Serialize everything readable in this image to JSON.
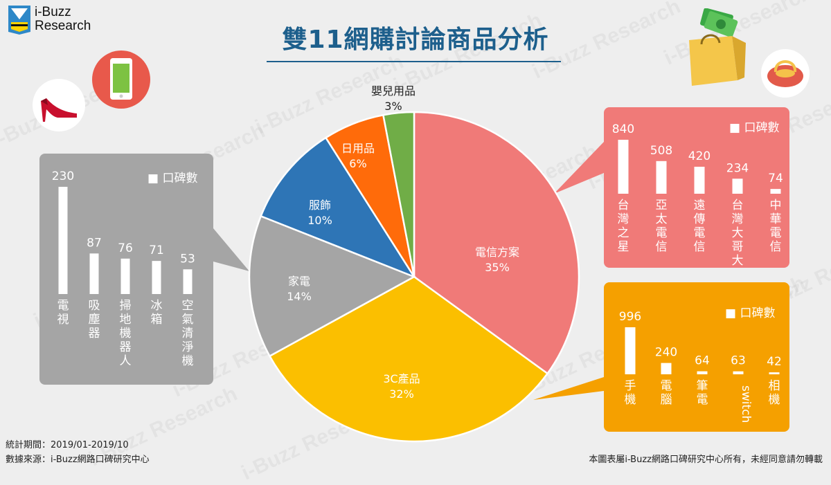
{
  "brand": {
    "line1": "i-Buzz",
    "line2": "Research"
  },
  "title": "雙11網購討論商品分析",
  "watermark_text": "i-Buzz Research",
  "footer": {
    "period": "統計期間：2019/01-2019/10",
    "source": "數據來源：i-Buzz網路口碑研究中心",
    "copyright": "本圖表屬i-Buzz網路口碑研究中心所有，未經同意請勿轉載"
  },
  "chart_data": [
    {
      "type": "pie",
      "slices": [
        {
          "label": "電信方案",
          "value": 35,
          "pct_label": "35%",
          "color": "#f07a78"
        },
        {
          "label": "3C產品",
          "value": 32,
          "pct_label": "32%",
          "color": "#fbbf00"
        },
        {
          "label": "家電",
          "value": 14,
          "pct_label": "14%",
          "color": "#a5a5a5"
        },
        {
          "label": "服飾",
          "value": 10,
          "pct_label": "10%",
          "color": "#2e75b6"
        },
        {
          "label": "日用品",
          "value": 6,
          "pct_label": "6%",
          "color": "#ff6b0a"
        },
        {
          "label": "嬰兒用品",
          "value": 3,
          "pct_label": "3%",
          "color": "#70ad47"
        }
      ]
    },
    {
      "type": "bar",
      "panel_color": "#a5a5a5",
      "legend": "口碑數",
      "categories": [
        "電視",
        "吸塵器",
        "掃地機器人",
        "冰箱",
        "空氣清淨機"
      ],
      "values": [
        230,
        87,
        76,
        71,
        53
      ]
    },
    {
      "type": "bar",
      "panel_color": "#f07a78",
      "legend": "口碑數",
      "categories": [
        "台灣之星",
        "亞太電信",
        "遠傳電信",
        "台灣大哥大",
        "中華電信"
      ],
      "values": [
        840,
        508,
        420,
        234,
        74
      ]
    },
    {
      "type": "bar",
      "panel_color": "#f5a000",
      "legend": "口碑數",
      "categories": [
        "手機",
        "電腦",
        "筆電",
        "switch",
        "相機"
      ],
      "values": [
        996,
        240,
        64,
        63,
        42
      ]
    }
  ]
}
